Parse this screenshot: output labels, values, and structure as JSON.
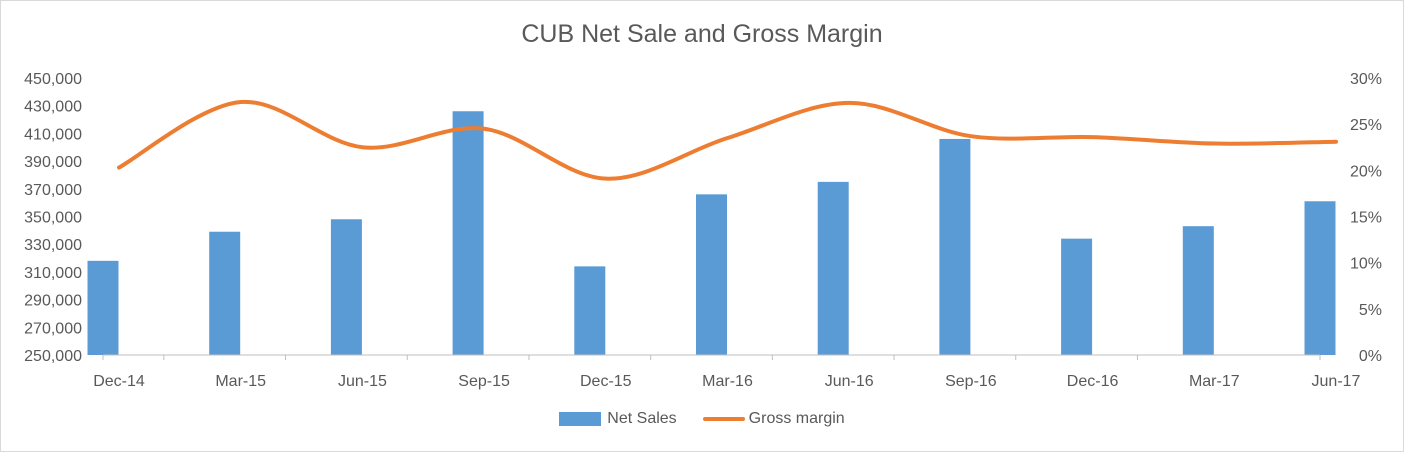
{
  "chart_data": {
    "type": "bar",
    "title": "CUB Net Sale and Gross Margin",
    "categories": [
      "Dec-14",
      "Mar-15",
      "Jun-15",
      "Sep-15",
      "Dec-15",
      "Mar-16",
      "Jun-16",
      "Sep-16",
      "Dec-16",
      "Mar-17",
      "Jun-17"
    ],
    "series": [
      {
        "name": "Net Sales",
        "type": "bar",
        "axis": "left",
        "color": "#5b9bd5",
        "values": [
          318000,
          339000,
          348000,
          426000,
          314000,
          366000,
          375000,
          406000,
          334000,
          343000,
          361000
        ]
      },
      {
        "name": "Gross margin",
        "type": "line",
        "axis": "right",
        "color": "#ed7d31",
        "values": [
          0.203,
          0.274,
          0.225,
          0.245,
          0.191,
          0.235,
          0.273,
          0.237,
          0.236,
          0.229,
          0.231
        ]
      }
    ],
    "y_left": {
      "min": 250000,
      "max": 450000,
      "ticks": [
        "250,000",
        "270,000",
        "290,000",
        "310,000",
        "330,000",
        "350,000",
        "370,000",
        "390,000",
        "410,000",
        "430,000",
        "450,000"
      ]
    },
    "y_right": {
      "min": 0,
      "max": 0.3,
      "ticks": [
        "0%",
        "5%",
        "10%",
        "15%",
        "20%",
        "25%",
        "30%"
      ]
    },
    "legend": "bottom",
    "grid": false
  }
}
